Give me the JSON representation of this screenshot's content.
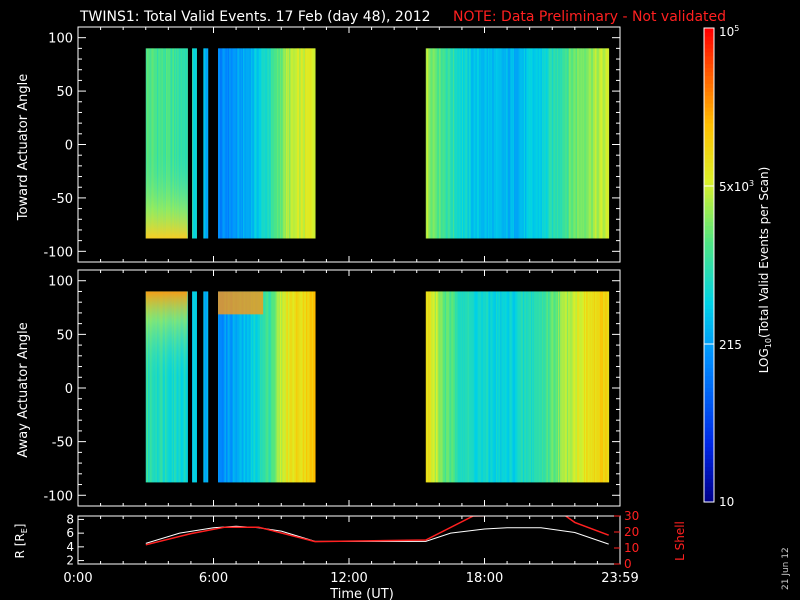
{
  "header": {
    "title": "TWINS1: Total Valid Events. 17 Feb (day  48), 2012",
    "note": "NOTE: Data Preliminary - Not validated"
  },
  "footer": {
    "date_stamp": "21 Jun 12"
  },
  "colors": {
    "background": "#000000",
    "foreground": "#ffffff",
    "note": "#ff2020",
    "l_shell": "#ff2020",
    "radius": "#ffffff"
  },
  "chart_data": [
    {
      "type": "heatmap",
      "title": "",
      "ylabel": "Toward Actuator Angle",
      "xlim": [
        0,
        24
      ],
      "ylim": [
        -110,
        110
      ],
      "yticks": [
        100,
        50,
        0,
        -50,
        -100
      ],
      "ytick_labels": [
        "100",
        "50",
        "0",
        "-50",
        "-100"
      ],
      "angle_range": [
        -88,
        90
      ],
      "coverage_hours": [
        [
          3.0,
          4.85
        ],
        [
          5.05,
          5.25
        ],
        [
          5.55,
          5.75
        ],
        [
          6.2,
          10.5
        ],
        [
          15.4,
          23.5
        ]
      ],
      "column_log_level": [
        {
          "t": 3.0,
          "v": 0.55
        },
        {
          "t": 4.8,
          "v": 0.5
        },
        {
          "t": 5.1,
          "v": 0.45
        },
        {
          "t": 6.2,
          "v": 0.28
        },
        {
          "t": 7.5,
          "v": 0.35
        },
        {
          "t": 8.6,
          "v": 0.5
        },
        {
          "t": 9.2,
          "v": 0.62
        },
        {
          "t": 10.5,
          "v": 0.7
        },
        {
          "t": 15.4,
          "v": 0.64
        },
        {
          "t": 16.3,
          "v": 0.52
        },
        {
          "t": 17.5,
          "v": 0.4
        },
        {
          "t": 19.0,
          "v": 0.36
        },
        {
          "t": 20.5,
          "v": 0.42
        },
        {
          "t": 22.0,
          "v": 0.58
        },
        {
          "t": 23.5,
          "v": 0.66
        }
      ],
      "note": "Bright edge near -90 deg angle at 3:00-5:00 UT"
    },
    {
      "type": "heatmap",
      "title": "",
      "ylabel": "Away Actuator Angle",
      "xlim": [
        0,
        24
      ],
      "ylim": [
        -110,
        110
      ],
      "yticks": [
        100,
        50,
        0,
        -50,
        -100
      ],
      "ytick_labels": [
        "100",
        "50",
        "0",
        "-50",
        "-100"
      ],
      "angle_range": [
        -88,
        90
      ],
      "coverage_hours": [
        [
          3.0,
          4.85
        ],
        [
          5.05,
          5.25
        ],
        [
          5.55,
          5.75
        ],
        [
          6.2,
          10.5
        ],
        [
          15.4,
          23.5
        ]
      ],
      "column_log_level": [
        {
          "t": 3.0,
          "v": 0.5
        },
        {
          "t": 4.8,
          "v": 0.45
        },
        {
          "t": 5.1,
          "v": 0.42
        },
        {
          "t": 6.2,
          "v": 0.3
        },
        {
          "t": 7.5,
          "v": 0.38
        },
        {
          "t": 8.6,
          "v": 0.55
        },
        {
          "t": 9.2,
          "v": 0.7
        },
        {
          "t": 10.5,
          "v": 0.78
        },
        {
          "t": 15.4,
          "v": 0.74
        },
        {
          "t": 16.3,
          "v": 0.55
        },
        {
          "t": 17.5,
          "v": 0.45
        },
        {
          "t": 19.0,
          "v": 0.42
        },
        {
          "t": 20.5,
          "v": 0.5
        },
        {
          "t": 22.0,
          "v": 0.68
        },
        {
          "t": 23.5,
          "v": 0.76
        }
      ],
      "note": "Bright top band near +90 deg angle at 3:00-4:50 and 6:10-8:00 UT"
    },
    {
      "type": "line",
      "xlabel": "Time (UT)",
      "xlim": [
        0,
        24
      ],
      "xticks": [
        0,
        6,
        12,
        18,
        24
      ],
      "xtick_labels": [
        "0:00",
        "6:00",
        "12:00",
        "18:00",
        "23:59"
      ],
      "ylabel_left": "R [R",
      "ylabel_left_sub": "E",
      "ylabel_left_close": "]",
      "ylim_left": [
        1.5,
        8.5
      ],
      "yticks_left": [
        "2",
        "4",
        "6",
        "8"
      ],
      "ylabel_right": "L Shell",
      "ylim_right": [
        0,
        30
      ],
      "yticks_right": [
        "0",
        "10",
        "20",
        "30"
      ],
      "series": [
        {
          "axis": "left",
          "points": [
            [
              3.0,
              4.5
            ],
            [
              4.5,
              6.0
            ],
            [
              6.0,
              6.8
            ],
            [
              7.0,
              7.0
            ],
            [
              8.0,
              6.8
            ],
            [
              9.0,
              6.3
            ],
            [
              10.5,
              4.8
            ],
            [
              15.4,
              4.8
            ],
            [
              16.5,
              6.0
            ],
            [
              18.0,
              6.6
            ],
            [
              19.0,
              6.8
            ],
            [
              20.5,
              6.8
            ],
            [
              22.0,
              6.1
            ],
            [
              23.5,
              4.4
            ]
          ]
        },
        {
          "axis": "right",
          "points": [
            [
              3.0,
              12
            ],
            [
              5.0,
              19
            ],
            [
              6.5,
              23
            ],
            [
              8.0,
              23
            ],
            [
              10.5,
              14
            ],
            [
              15.4,
              15
            ],
            [
              17.5,
              30
            ],
            [
              21.5,
              31
            ],
            [
              22.0,
              26
            ],
            [
              23.5,
              18
            ]
          ]
        }
      ]
    },
    {
      "type": "colorbar",
      "ylabel": "LOG",
      "ylabel_sub": "10",
      "ylabel_rest": "(Total Valid Events per Scan)",
      "range": [
        10,
        100000
      ],
      "ticks": [
        {
          "label": "10",
          "frac": 0.0
        },
        {
          "label": "215",
          "frac": 0.3333
        },
        {
          "label": "5x10",
          "sup": "3",
          "frac": 0.6667
        },
        {
          "label": "10",
          "sup": "5",
          "frac": 1.0
        }
      ]
    }
  ]
}
